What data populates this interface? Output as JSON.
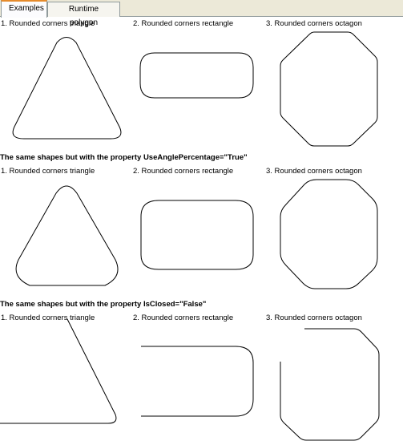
{
  "tabs": [
    {
      "label": "Examples",
      "active": true
    },
    {
      "label": "Runtime polygon",
      "active": false
    }
  ],
  "sections": [
    {
      "heading": "",
      "captions": [
        "1. Rounded corners triangle",
        "2. Rounded corners rectangle",
        "3. Rounded corners octagon"
      ]
    },
    {
      "heading": "The same shapes but with the property UseAnglePercentage=\"True\"",
      "captions": [
        "1. Rounded corners triangle",
        "2. Rounded corners rectangle",
        "3. Rounded corners octagon"
      ]
    },
    {
      "heading": "The same shapes but with the property IsClosed=\"False\"",
      "captions": [
        "1. Rounded corners triangle",
        "2. Rounded corners rectangle",
        "3. Rounded corners octagon"
      ]
    }
  ]
}
